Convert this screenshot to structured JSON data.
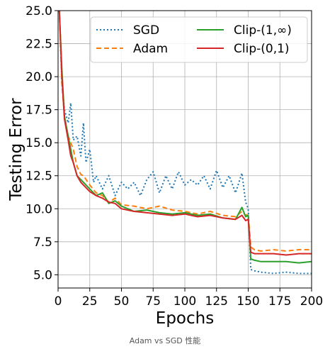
{
  "caption": "Adam vs SGD 性能",
  "chart_data": {
    "type": "line",
    "title": "",
    "xlabel": "Epochs",
    "ylabel": "Testing Error",
    "xlim": [
      0,
      200
    ],
    "ylim": [
      4.0,
      25.0
    ],
    "xticks": [
      "0",
      "25",
      "50",
      "75",
      "100",
      "125",
      "150",
      "175",
      "200"
    ],
    "yticks": [
      "5.0",
      "7.5",
      "10.0",
      "12.5",
      "15.0",
      "17.5",
      "20.0",
      "22.5",
      "25.0"
    ],
    "grid": true,
    "legend": "top-right",
    "series": [
      {
        "name": "SGD",
        "color": "#1f77b4",
        "dash": "dotted",
        "x": [
          1,
          3,
          5,
          8,
          10,
          12,
          15,
          18,
          20,
          22,
          25,
          28,
          30,
          35,
          40,
          45,
          50,
          55,
          60,
          65,
          70,
          75,
          80,
          85,
          90,
          95,
          100,
          105,
          110,
          115,
          120,
          125,
          130,
          135,
          140,
          145,
          148,
          150,
          152,
          155,
          160,
          170,
          180,
          190,
          200
        ],
        "y": [
          25,
          19.5,
          17.5,
          16.5,
          18,
          15.2,
          15.5,
          14,
          16.5,
          13.5,
          14.5,
          12,
          12.5,
          11.5,
          12.5,
          11,
          12,
          11.5,
          12,
          11,
          12.2,
          12.8,
          11.2,
          12.5,
          11.5,
          12.8,
          11.8,
          12.2,
          11.8,
          12.5,
          11.5,
          12.9,
          11.6,
          12.5,
          11.2,
          12.7,
          10.5,
          10,
          5.4,
          5.3,
          5.2,
          5.1,
          5.2,
          5.1,
          5.1
        ]
      },
      {
        "name": "Adam",
        "color": "#ff7f0e",
        "dash": "dashed",
        "x": [
          1,
          3,
          5,
          8,
          10,
          12,
          15,
          18,
          20,
          25,
          30,
          35,
          40,
          45,
          50,
          60,
          70,
          80,
          90,
          100,
          110,
          120,
          130,
          140,
          145,
          148,
          150,
          152,
          155,
          160,
          170,
          180,
          190,
          200
        ],
        "y": [
          25,
          19.5,
          17,
          15.5,
          15,
          14.5,
          13.2,
          12.6,
          12.5,
          11.8,
          11.2,
          11,
          10.5,
          10.8,
          10.3,
          10.2,
          10,
          10.2,
          9.9,
          9.8,
          9.6,
          9.8,
          9.5,
          9.4,
          9.8,
          9.5,
          9.6,
          7.1,
          6.9,
          6.8,
          6.9,
          6.8,
          6.9,
          6.9
        ]
      },
      {
        "name": "Clip-(1,∞)",
        "color": "#2ca02c",
        "dash": "solid",
        "x": [
          1,
          3,
          5,
          8,
          10,
          12,
          15,
          18,
          20,
          25,
          30,
          35,
          40,
          45,
          50,
          60,
          70,
          80,
          90,
          100,
          110,
          120,
          130,
          140,
          145,
          148,
          150,
          152,
          155,
          160,
          170,
          180,
          190,
          200
        ],
        "y": [
          25,
          20.5,
          17,
          15.5,
          14.5,
          13.5,
          12.5,
          12.2,
          12,
          11.5,
          11,
          11.2,
          10.4,
          10.6,
          10.2,
          9.8,
          9.9,
          9.7,
          9.6,
          9.7,
          9.5,
          9.6,
          9.3,
          9.2,
          10.1,
          9.4,
          9.5,
          6.2,
          6.1,
          6.0,
          6.0,
          6.0,
          5.9,
          6.0
        ]
      },
      {
        "name": "Clip-(0,1)",
        "color": "#d62728",
        "dash": "solid",
        "x": [
          1,
          3,
          5,
          8,
          10,
          12,
          15,
          18,
          20,
          25,
          30,
          35,
          40,
          45,
          50,
          60,
          70,
          80,
          90,
          100,
          110,
          120,
          130,
          140,
          145,
          148,
          150,
          152,
          155,
          160,
          170,
          180,
          190,
          200
        ],
        "y": [
          25,
          20,
          16.8,
          15.2,
          14,
          13.5,
          12.5,
          12,
          11.8,
          11.3,
          11,
          10.8,
          10.5,
          10.4,
          10,
          9.8,
          9.7,
          9.6,
          9.5,
          9.6,
          9.4,
          9.5,
          9.3,
          9.2,
          9.5,
          9.1,
          9.2,
          6.7,
          6.6,
          6.6,
          6.6,
          6.5,
          6.6,
          6.6
        ]
      }
    ]
  }
}
